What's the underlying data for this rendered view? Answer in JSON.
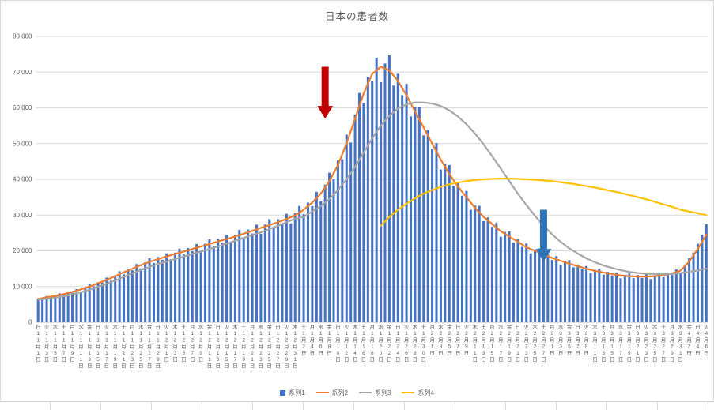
{
  "chart_data": {
    "type": "combo",
    "title": "日本の患者数",
    "legend": [
      "系列1",
      "系列2",
      "系列3",
      "系列4"
    ],
    "y_axis": {
      "min": 0,
      "max": 80000,
      "step": 10000,
      "tick_labels": [
        "0",
        "10 000",
        "20 000",
        "30 000",
        "40 000",
        "50 000",
        "60 000",
        "70 000",
        "80 000"
      ]
    },
    "x_label_step_days": 2,
    "x_labels": [
      "日11月1日",
      "火11月3日",
      "木11月5日",
      "土11月7日",
      "月11月9日",
      "水11月11日",
      "金11月13日",
      "日11月15日",
      "火11月17日",
      "木11月19日",
      "土11月21日",
      "月11月23日",
      "水11月25日",
      "金11月27日",
      "日11月29日",
      "火12月1日",
      "木12月3日",
      "土12月5日",
      "月12月7日",
      "水12月9日",
      "金12月11日",
      "日12月13日",
      "火12月15日",
      "木12月17日",
      "土12月19日",
      "月12月21日",
      "水12月23日",
      "金12月25日",
      "日12月27日",
      "火12月29日",
      "木12月31日",
      "土1月2日",
      "月1月4日",
      "水1月6日",
      "金1月8日",
      "日1月10日",
      "火1月12日",
      "木1月14日",
      "土1月16日",
      "月1月18日",
      "水1月20日",
      "金1月22日",
      "日1月24日",
      "火1月26日",
      "木1月28日",
      "土1月30日",
      "月2月1日",
      "水2月3日",
      "金2月5日",
      "日2月7日",
      "火2月9日",
      "木2月11日",
      "土2月13日",
      "月2月15日",
      "水2月17日",
      "金2月19日",
      "日2月21日",
      "火2月23日",
      "木2月25日",
      "土2月27日",
      "月3月1日",
      "水3月3日",
      "金3月5日",
      "日3月7日",
      "火3月9日",
      "木3月11日",
      "土3月13日",
      "月3月15日",
      "水3月17日",
      "金3月19日",
      "日3月21日",
      "火3月23日",
      "木3月25日",
      "土3月27日",
      "月3月29日",
      "水3月31日",
      "金4月2日",
      "日4月4日",
      "火4月6日"
    ],
    "bars": {
      "name": "系列1",
      "color": "#4472C4",
      "daily_values": [
        6700,
        6550,
        7350,
        6750,
        7550,
        8100,
        7600,
        8450,
        8250,
        9300,
        8650,
        9800,
        10600,
        10050,
        11200,
        11050,
        12500,
        11650,
        13150,
        14250,
        13450,
        14950,
        14550,
        16300,
        15050,
        16800,
        17900,
        16600,
        18250,
        17500,
        19300,
        17650,
        19500,
        20600,
        19000,
        20750,
        19900,
        21900,
        19950,
        22000,
        23200,
        21350,
        23300,
        22250,
        24450,
        22250,
        24500,
        25850,
        23800,
        25950,
        24850,
        27300,
        24800,
        27350,
        28850,
        26500,
        28850,
        27600,
        30350,
        27650,
        30500,
        32550,
        30250,
        33500,
        32500,
        36500,
        33850,
        38500,
        41850,
        40100,
        45300,
        45600,
        52500,
        50300,
        58150,
        64150,
        61450,
        68750,
        67400,
        74050,
        67200,
        72400,
        74750,
        66250,
        69550,
        63550,
        66700,
        57600,
        60200,
        60150,
        52300,
        53800,
        48500,
        50150,
        42750,
        44350,
        44000,
        38150,
        39150,
        35400,
        36750,
        31500,
        32650,
        32600,
        28300,
        29350,
        26700,
        27800,
        23950,
        25250,
        25450,
        22300,
        23200,
        21100,
        22050,
        19250,
        20400,
        20650,
        18250,
        19050,
        17450,
        18500,
        16150,
        17150,
        17400,
        15400,
        16150,
        14900,
        15750,
        13800,
        14700,
        15000,
        13350,
        14100,
        13100,
        13950,
        12300,
        13250,
        13650,
        12350,
        13200,
        12400,
        13450,
        12100,
        13150,
        13850,
        12650,
        13850,
        13300,
        14800,
        13650,
        16100,
        18000,
        19500,
        22000,
        24500,
        27400
      ]
    },
    "lines": [
      {
        "name": "系列2",
        "color": "#ED7D31",
        "values": [
          6500,
          7000,
          7400,
          7900,
          8500,
          9200,
          10000,
          10900,
          11900,
          12900,
          14000,
          15000,
          16000,
          16900,
          17700,
          18400,
          19100,
          19800,
          20500,
          21200,
          21900,
          22600,
          23300,
          24000,
          24800,
          25600,
          26400,
          27200,
          28000,
          28900,
          29900,
          31500,
          33500,
          36000,
          39500,
          44000,
          50000,
          57000,
          64000,
          69500,
          71500,
          70500,
          67500,
          63500,
          59000,
          54500,
          50000,
          45500,
          41500,
          38000,
          35000,
          32000,
          29500,
          27500,
          25500,
          24000,
          22500,
          21000,
          20000,
          19000,
          18000,
          17200,
          16400,
          15700,
          15000,
          14400,
          13900,
          13500,
          13100,
          12900,
          12800,
          12800,
          12900,
          13200,
          13700,
          14500,
          17000,
          20500,
          24500
        ]
      },
      {
        "name": "系列3",
        "color": "#A5A5A5",
        "values": [
          6300,
          6600,
          6900,
          7300,
          7800,
          8400,
          9100,
          9900,
          10800,
          11700,
          12700,
          13700,
          14600,
          15500,
          16300,
          17000,
          17700,
          18400,
          19100,
          19800,
          20500,
          21200,
          22000,
          22800,
          23600,
          24400,
          25200,
          26100,
          27000,
          28000,
          29000,
          29500,
          31000,
          32500,
          34500,
          37000,
          40000,
          43500,
          47500,
          51500,
          55000,
          57800,
          59800,
          61000,
          61500,
          61500,
          61200,
          60500,
          59300,
          57600,
          55400,
          52800,
          49800,
          46500,
          43000,
          39500,
          36000,
          32800,
          29800,
          27000,
          24600,
          22500,
          20700,
          19200,
          17900,
          16800,
          15900,
          15200,
          14600,
          14100,
          13800,
          13600,
          13500,
          13500,
          13600,
          13800,
          14100,
          14500,
          15000
        ]
      },
      {
        "name": "系列4",
        "color": "#FFC000",
        "values": [
          null,
          null,
          null,
          null,
          null,
          null,
          null,
          null,
          null,
          null,
          null,
          null,
          null,
          null,
          null,
          null,
          null,
          null,
          null,
          null,
          null,
          null,
          null,
          null,
          null,
          null,
          null,
          null,
          null,
          null,
          null,
          null,
          null,
          null,
          null,
          null,
          null,
          null,
          null,
          null,
          27000,
          29500,
          31500,
          33200,
          34700,
          36000,
          37000,
          37900,
          38600,
          39100,
          39500,
          39800,
          40000,
          40100,
          40200,
          40200,
          40100,
          40000,
          39900,
          39700,
          39500,
          39200,
          38900,
          38500,
          38100,
          37700,
          37200,
          36700,
          36200,
          35600,
          35000,
          34400,
          33700,
          33000,
          32300,
          31500,
          31000,
          30500,
          30000
        ]
      }
    ],
    "annotations": [
      {
        "name": "red-down-arrow",
        "type": "down-arrow",
        "color": "#C00000",
        "day_index": 67,
        "tail_value": 71500,
        "tip_value": 57000
      },
      {
        "name": "blue-down-arrow",
        "type": "down-arrow",
        "color": "#2E74B5",
        "day_index": 118,
        "tail_value": 31500,
        "tip_value": 17000
      }
    ]
  }
}
